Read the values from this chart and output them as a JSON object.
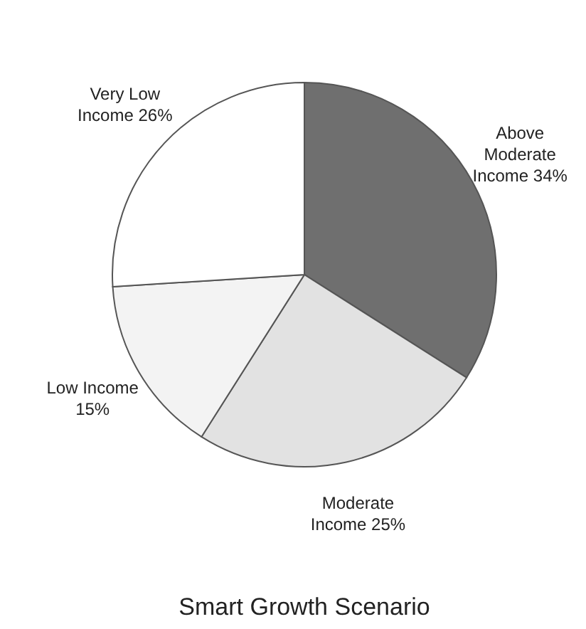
{
  "chart_data": {
    "type": "pie",
    "title": "Smart Growth Scenario",
    "categories": [
      "Above Moderate Income",
      "Moderate Income",
      "Low Income",
      "Very Low Income"
    ],
    "values": [
      34,
      25,
      15,
      26
    ],
    "value_labels": [
      "34%",
      "25%",
      "15%",
      "26%"
    ],
    "colors": [
      "#6f6f6f",
      "#e2e2e2",
      "#f3f3f3",
      "#ffffff"
    ]
  }
}
